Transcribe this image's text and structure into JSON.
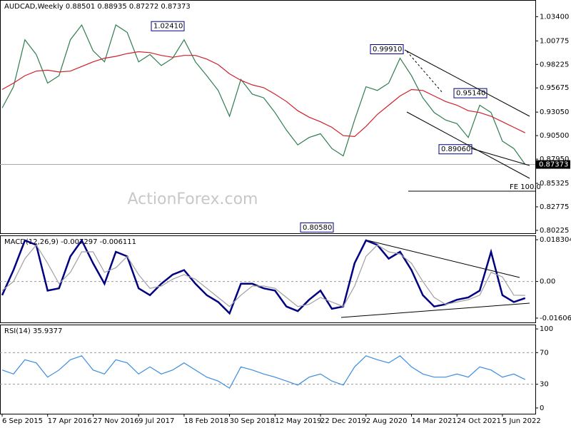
{
  "chart_data": [
    {
      "type": "line",
      "title": "AUDCAD,Weekly  0.88501 0.88935 0.87272 0.87373",
      "watermark": "ActionForex.com",
      "ylim": [
        0.7991,
        1.0521
      ],
      "yticks": [
        {
          "value": 1.034,
          "label": "1.03400"
        },
        {
          "value": 1.00775,
          "label": "1.00775"
        },
        {
          "value": 0.98225,
          "label": "0.98225"
        },
        {
          "value": 0.95675,
          "label": "0.95675"
        },
        {
          "value": 0.9305,
          "label": "0.93050"
        },
        {
          "value": 0.905,
          "label": "0.90500"
        },
        {
          "value": 0.8795,
          "label": "0.87950"
        },
        {
          "value": 0.85325,
          "label": "0.85325"
        },
        {
          "value": 0.82775,
          "label": "0.82775"
        },
        {
          "value": 0.80225,
          "label": "0.80225"
        }
      ],
      "series": [
        {
          "color": "#2e7d4f",
          "values": [
            0.935,
            0.958,
            1.009,
            0.993,
            0.962,
            0.97,
            1.009,
            1.025,
            0.997,
            0.985,
            1.025,
            1.017,
            0.985,
            0.993,
            0.981,
            0.989,
            1.009,
            0.985,
            0.97,
            0.954,
            0.926,
            0.966,
            0.95,
            0.946,
            0.93,
            0.911,
            0.895,
            0.903,
            0.907,
            0.891,
            0.883,
            0.922,
            0.958,
            0.954,
            0.962,
            0.989,
            0.97,
            0.946,
            0.93,
            0.922,
            0.918,
            0.903,
            0.938,
            0.93,
            0.899,
            0.891,
            0.87373
          ]
        },
        {
          "color": "#d0202a",
          "values": [
            0.955,
            0.962,
            0.97,
            0.975,
            0.976,
            0.974,
            0.975,
            0.98,
            0.985,
            0.989,
            0.991,
            0.994,
            0.996,
            0.995,
            0.992,
            0.99,
            0.992,
            0.992,
            0.988,
            0.982,
            0.972,
            0.965,
            0.96,
            0.957,
            0.95,
            0.942,
            0.932,
            0.925,
            0.92,
            0.914,
            0.905,
            0.904,
            0.915,
            0.928,
            0.938,
            0.948,
            0.955,
            0.954,
            0.948,
            0.942,
            0.938,
            0.932,
            0.93,
            0.926,
            0.92,
            0.914,
            0.908
          ]
        }
      ],
      "annotations": [
        {
          "label": "1.02410",
          "value": 1.0241
        },
        {
          "label": "0.99910",
          "value": 0.9991
        },
        {
          "label": "0.95140",
          "value": 0.9514
        },
        {
          "label": "0.89060",
          "value": 0.8906
        },
        {
          "label": "0.80580",
          "value": 0.8058
        },
        {
          "label": "FE 100.0",
          "value": 0.8447
        }
      ]
    },
    {
      "type": "line",
      "title": "MACD(12,26,9) -0.007297 -0.006111",
      "ylim": [
        -0.01796,
        0.0202
      ],
      "yticks": [
        0.018304,
        {
          "value": 0,
          "label": "0.00"
        },
        -0.016064
      ],
      "series": [
        {
          "color": "#000080",
          "values": [
            -0.006,
            0.005,
            0.018,
            0.016,
            -0.004,
            -0.003,
            0.011,
            0.018,
            0.008,
            -0.001,
            0.013,
            0.011,
            -0.003,
            -0.006,
            -0.001,
            0.003,
            0.005,
            -0.001,
            -0.006,
            -0.009,
            -0.014,
            -0.001,
            -0.001,
            -0.003,
            -0.004,
            -0.011,
            -0.013,
            -0.008,
            -0.004,
            -0.012,
            -0.011,
            0.008,
            0.018,
            0.016,
            0.01,
            0.013,
            0.005,
            -0.006,
            -0.011,
            -0.01,
            -0.008,
            -0.007,
            -0.004,
            0.013,
            -0.006,
            -0.009,
            -0.007297
          ]
        },
        {
          "color": "#a0a0a0",
          "values": [
            -0.004,
            0.0,
            0.01,
            0.016,
            0.008,
            -0.001,
            0.004,
            0.013,
            0.013,
            0.004,
            0.006,
            0.011,
            0.003,
            -0.003,
            -0.002,
            0.001,
            0.003,
            0.001,
            -0.003,
            -0.007,
            -0.011,
            -0.006,
            -0.002,
            -0.002,
            -0.003,
            -0.007,
            -0.011,
            -0.01,
            -0.007,
            -0.009,
            -0.011,
            -0.002,
            0.011,
            0.016,
            0.013,
            0.012,
            0.008,
            0.0,
            -0.007,
            -0.01,
            -0.009,
            -0.008,
            -0.006,
            0.004,
            0.002,
            -0.006,
            -0.006111
          ]
        }
      ]
    },
    {
      "type": "line",
      "title": "RSI(14) 35.9377",
      "ylim": [
        -7.3,
        105.5
      ],
      "yticks": [
        100,
        70,
        30,
        0
      ],
      "categories": [
        "6 Sep 2015",
        null,
        null,
        null,
        "17 Apr 2016",
        null,
        null,
        null,
        "27 Nov 2016",
        null,
        null,
        null,
        "9 Jul 2017",
        null,
        null,
        null,
        "18 Feb 2018",
        null,
        null,
        null,
        "30 Sep 2018",
        null,
        null,
        null,
        "12 May 2019",
        null,
        null,
        null,
        "22 Dec 2019",
        null,
        null,
        null,
        "2 Aug 2020",
        null,
        null,
        null,
        "14 Mar 2021",
        null,
        null,
        null,
        "24 Oct 2021",
        null,
        null,
        null,
        "5 Jun 2022",
        null,
        null
      ],
      "series": [
        {
          "color": "#3a8dde",
          "values": [
            48,
            43,
            61,
            57,
            39,
            48,
            61,
            66,
            48,
            43,
            61,
            57,
            43,
            52,
            43,
            48,
            57,
            48,
            39,
            34,
            25,
            52,
            48,
            43,
            39,
            34,
            29,
            39,
            43,
            34,
            29,
            52,
            66,
            61,
            57,
            66,
            52,
            43,
            39,
            39,
            43,
            39,
            52,
            48,
            39,
            43,
            35.9377
          ]
        }
      ]
    }
  ]
}
